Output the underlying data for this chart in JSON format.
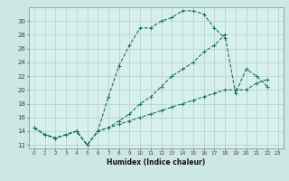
{
  "xlabel": "Humidex (Indice chaleur)",
  "background_color": "#cce8e4",
  "plot_bg_color": "#d8f0ec",
  "grid_color": "#b0d0cc",
  "line_color": "#1a6e6a",
  "xlim": [
    -0.5,
    23.5
  ],
  "ylim": [
    11.5,
    32
  ],
  "yticks": [
    12,
    14,
    16,
    18,
    20,
    22,
    24,
    26,
    28,
    30
  ],
  "xticks": [
    0,
    1,
    2,
    3,
    4,
    5,
    6,
    7,
    8,
    9,
    10,
    11,
    12,
    13,
    14,
    15,
    16,
    17,
    18,
    19,
    20,
    21,
    22,
    23
  ],
  "series": [
    {
      "x": [
        0,
        1,
        2,
        3,
        4,
        5,
        6,
        7,
        8,
        9,
        10,
        11,
        12,
        13,
        14,
        15,
        16,
        17,
        18
      ],
      "y": [
        14.5,
        13.5,
        13,
        13.5,
        14,
        12,
        14,
        19,
        23.5,
        26.5,
        29,
        29,
        30,
        30.5,
        31.5,
        31.5,
        31,
        29,
        27.5
      ]
    },
    {
      "x": [
        0,
        1,
        2,
        3,
        4,
        5,
        6,
        7,
        8,
        9,
        10,
        11,
        12,
        13,
        14,
        15,
        16,
        17,
        18,
        19,
        20,
        21,
        22
      ],
      "y": [
        14.5,
        13.5,
        13,
        13.5,
        14,
        12,
        14,
        14.5,
        15.5,
        16.5,
        18,
        19,
        20.5,
        22,
        23,
        24,
        25.5,
        26.5,
        28,
        19.5,
        23,
        22,
        20.5
      ]
    },
    {
      "x": [
        0,
        1,
        2,
        3,
        4,
        5,
        6,
        7,
        8,
        9,
        10,
        11,
        12,
        13,
        14,
        15,
        16,
        17,
        18,
        19,
        20,
        21,
        22
      ],
      "y": [
        14.5,
        13.5,
        13,
        13.5,
        14,
        12,
        14,
        14.5,
        15,
        15.5,
        16,
        16.5,
        17,
        17.5,
        18,
        18.5,
        19,
        19.5,
        20,
        20,
        20,
        21,
        21.5
      ]
    }
  ]
}
